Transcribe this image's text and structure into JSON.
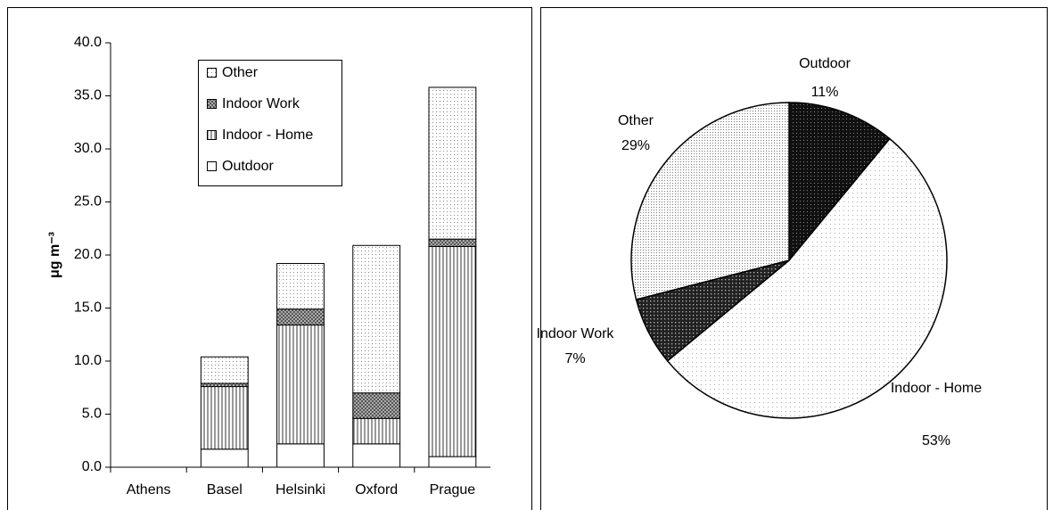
{
  "chart_data": [
    {
      "type": "bar",
      "stacked": true,
      "ylabel": "μg m⁻³",
      "categories": [
        "Athens",
        "Basel",
        "Helsinki",
        "Oxford",
        "Prague"
      ],
      "series": [
        {
          "name": "Outdoor",
          "color": "#ffffff",
          "pattern": "none",
          "values": [
            null,
            1.7,
            2.2,
            2.2,
            1.0
          ]
        },
        {
          "name": "Indoor - Home",
          "color": "#ffffff",
          "pattern": "vertical",
          "values": [
            null,
            5.9,
            11.2,
            2.4,
            19.8
          ]
        },
        {
          "name": "Indoor Work",
          "color": "#bbbbbb",
          "pattern": "crosshatch",
          "values": [
            null,
            0.3,
            1.5,
            2.4,
            0.7
          ]
        },
        {
          "name": "Other",
          "color": "#eeeeee",
          "pattern": "dots",
          "values": [
            null,
            2.5,
            4.3,
            13.9,
            14.3
          ]
        }
      ],
      "ylim": [
        0,
        40
      ],
      "yticks": [
        {
          "value": 0,
          "label": "0.0"
        },
        {
          "value": 5,
          "label": "5.0"
        },
        {
          "value": 10,
          "label": "10.0"
        },
        {
          "value": 15,
          "label": "15.0"
        },
        {
          "value": 20,
          "label": "20.0"
        },
        {
          "value": 25,
          "label": "25.0"
        },
        {
          "value": 30,
          "label": "30.0"
        },
        {
          "value": 35,
          "label": "35.0"
        },
        {
          "value": 40,
          "label": "40.0"
        }
      ],
      "grid": false,
      "legend": "top"
    },
    {
      "type": "pie",
      "categories": [
        "Outdoor",
        "Indoor - Home",
        "Indoor Work",
        "Other"
      ],
      "values": [
        11,
        53,
        7,
        29
      ],
      "value_labels": [
        "11%",
        "53%",
        "7%",
        "29%"
      ],
      "colors": [
        "#111111",
        "#ffffff",
        "#333333",
        "#e6e6e6"
      ]
    }
  ]
}
